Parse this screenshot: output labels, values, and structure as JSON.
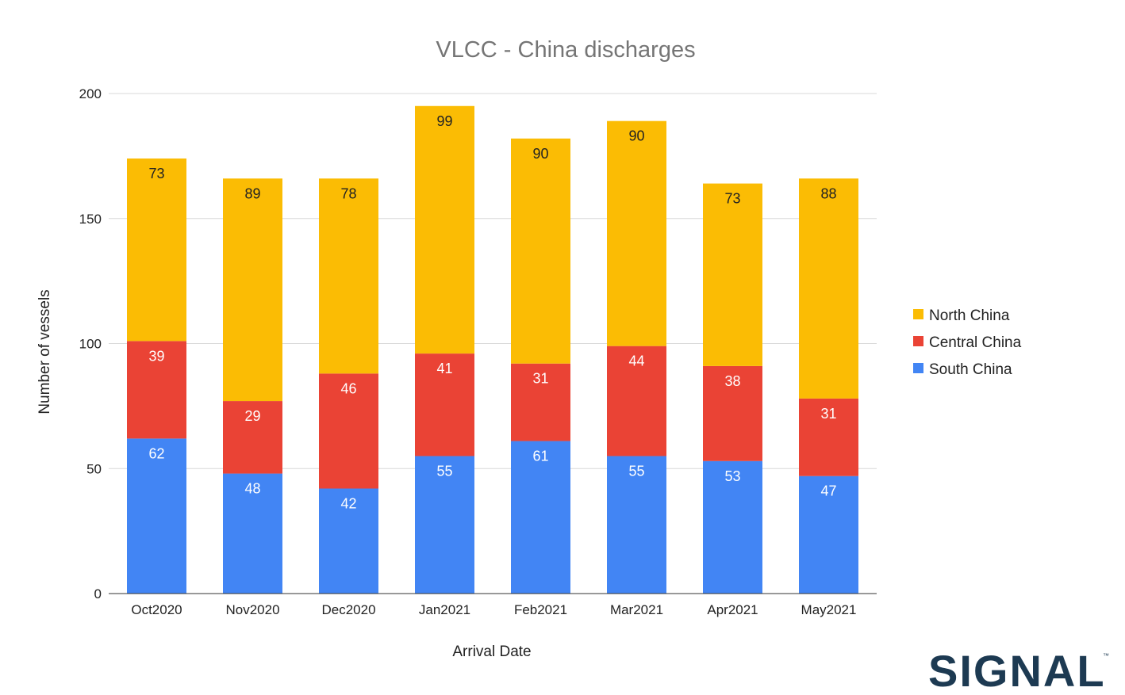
{
  "chart_data": {
    "type": "bar",
    "stacked": true,
    "title": "VLCC - China discharges",
    "xlabel": "Arrival Date",
    "ylabel": "Number of vessels",
    "ylim": [
      0,
      200
    ],
    "yticks": [
      0,
      50,
      100,
      150,
      200
    ],
    "grid": true,
    "legend_position": "right",
    "categories": [
      "Oct2020",
      "Nov2020",
      "Dec2020",
      "Jan2021",
      "Feb2021",
      "Mar2021",
      "Apr2021",
      "May2021"
    ],
    "series": [
      {
        "name": "South China",
        "color": "#4285f4",
        "label_color": "#ffffff",
        "values": [
          62,
          48,
          42,
          55,
          61,
          55,
          53,
          47
        ]
      },
      {
        "name": "Central China",
        "color": "#ea4335",
        "label_color": "#ffffff",
        "values": [
          39,
          29,
          46,
          41,
          31,
          44,
          38,
          31
        ]
      },
      {
        "name": "North China",
        "color": "#fbbc04",
        "label_color": "#222222",
        "values": [
          73,
          89,
          78,
          99,
          90,
          90,
          73,
          88
        ]
      }
    ]
  },
  "logo": {
    "text": "SIGNAL",
    "trademark": "™"
  }
}
